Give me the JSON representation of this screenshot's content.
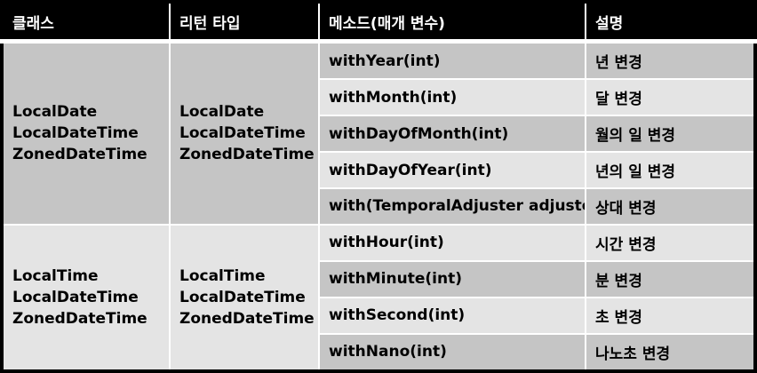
{
  "headers": [
    "클래스",
    "리턴 타입",
    "메소드(매개 변수)",
    "설명"
  ],
  "groups": [
    {
      "classes": [
        "LocalDate",
        "LocalDateTime",
        "ZonedDateTime"
      ],
      "return_types": [
        "LocalDate",
        "LocalDateTime",
        "ZonedDateTime"
      ],
      "rows": [
        {
          "method": "withYear(int)",
          "desc": "년 변경"
        },
        {
          "method": "withMonth(int)",
          "desc": "달 변경"
        },
        {
          "method": "withDayOfMonth(int)",
          "desc": "월의 일 변경"
        },
        {
          "method": "withDayOfYear(int)",
          "desc": "년의 일 변경"
        },
        {
          "method": "with(TemporalAdjuster adjuster)",
          "desc": "상대 변경"
        }
      ]
    },
    {
      "classes": [
        "LocalTime",
        "LocalDateTime",
        "ZonedDateTime"
      ],
      "return_types": [
        "LocalTime",
        "LocalDateTime",
        "ZonedDateTime"
      ],
      "rows": [
        {
          "method": "withHour(int)",
          "desc": "시간 변경"
        },
        {
          "method": "withMinute(int)",
          "desc": "분 변경"
        },
        {
          "method": "withSecond(int)",
          "desc": "초 변경"
        },
        {
          "method": "withNano(int)",
          "desc": "나노초 변경"
        }
      ]
    }
  ],
  "colors": {
    "header_bg": "#000000",
    "header_text": "#ffffff",
    "dark_cell": "#c5c5c5",
    "light_cell": "#e4e4e4"
  }
}
